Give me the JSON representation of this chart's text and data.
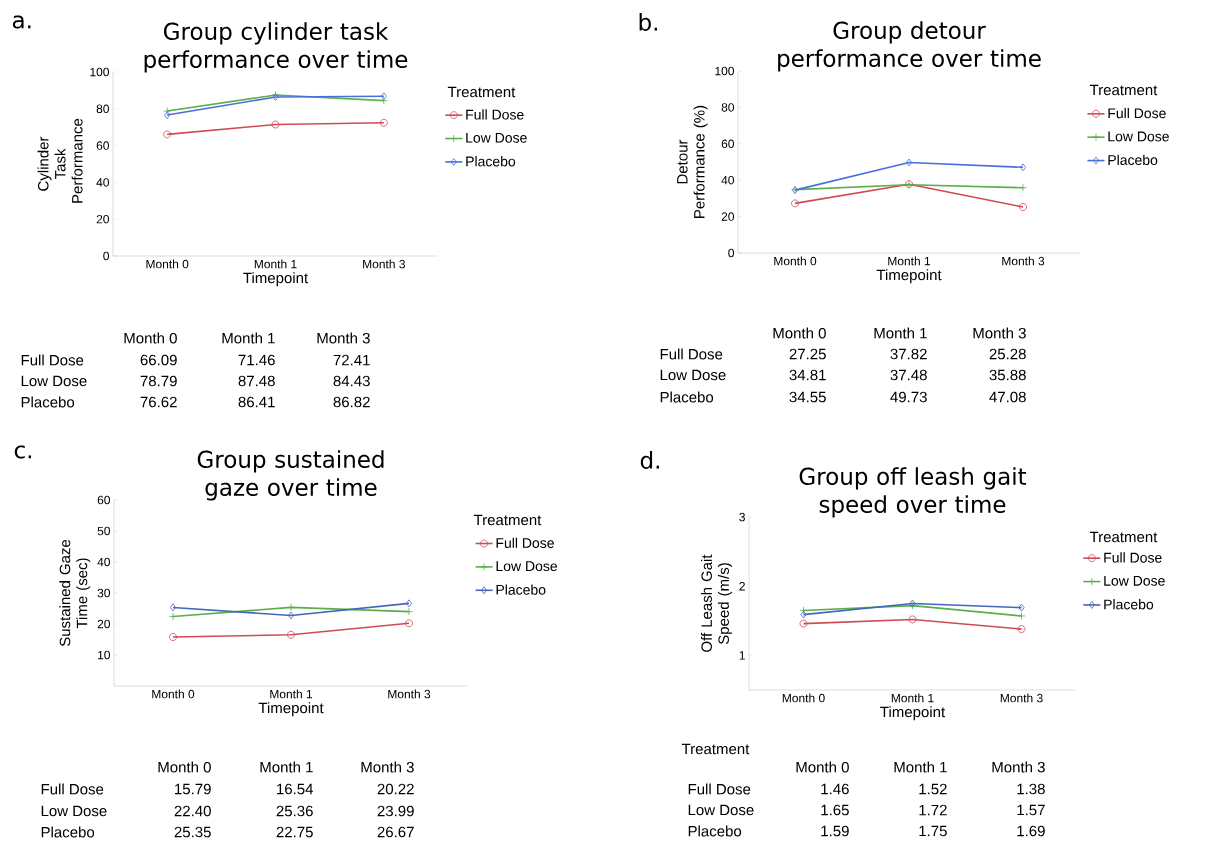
{
  "chart_data": [
    {
      "type": "line",
      "title": "Group cylinder task performance over time",
      "xlabel": "Timepoint",
      "ylabel": "Cylinder Task Performance",
      "legend_title": "Treatment",
      "legend": "right",
      "annotations": [
        "a."
      ],
      "categories": [
        "Month 0",
        "Month 1",
        "Month 3"
      ],
      "ylim": [
        0,
        100
      ],
      "yticks": [
        0,
        20,
        40,
        60,
        80,
        100
      ],
      "series": [
        {
          "name": "Full Dose",
          "color": "#cf4a55",
          "marker": "circle",
          "values": [
            66.09,
            71.46,
            72.41
          ],
          "value_labels": [
            "66.09",
            "71.46",
            "72.41"
          ]
        },
        {
          "name": "Low Dose",
          "color": "#5aaf4a",
          "marker": "cross",
          "values": [
            78.79,
            87.48,
            84.43
          ],
          "value_labels": [
            "78.79",
            "87.48",
            "84.43"
          ]
        },
        {
          "name": "Placebo",
          "color": "#4a6fd9",
          "marker": "diamond",
          "values": [
            76.62,
            86.41,
            86.82
          ],
          "value_labels": [
            "76.62",
            "86.41",
            "86.82"
          ]
        }
      ]
    },
    {
      "type": "line",
      "title": "Group detour performance over time",
      "xlabel": "Timepoint",
      "ylabel": "Detour Performance (%)",
      "legend_title": "Treatment",
      "legend": "right",
      "annotations": [
        "b."
      ],
      "categories": [
        "Month 0",
        "Month 1",
        "Month 3"
      ],
      "ylim": [
        0,
        100
      ],
      "yticks": [
        0,
        20,
        40,
        60,
        80,
        100
      ],
      "series": [
        {
          "name": "Full Dose",
          "color": "#cf4a55",
          "marker": "circle",
          "values": [
            27.25,
            37.82,
            25.28
          ],
          "value_labels": [
            "27.25",
            "37.82",
            "25.28"
          ]
        },
        {
          "name": "Low Dose",
          "color": "#5aaf4a",
          "marker": "cross",
          "values": [
            34.81,
            37.48,
            35.88
          ],
          "value_labels": [
            "34.81",
            "37.48",
            "35.88"
          ]
        },
        {
          "name": "Placebo",
          "color": "#4a6fd9",
          "marker": "diamond",
          "values": [
            34.55,
            49.73,
            47.08
          ],
          "value_labels": [
            "34.55",
            "49.73",
            "47.08"
          ]
        }
      ]
    },
    {
      "type": "line",
      "title": "Group sustained gaze over time",
      "xlabel": "Timepoint",
      "ylabel": "Sustained Gaze Time (sec)",
      "legend_title": "Treatment",
      "legend": "right",
      "annotations": [
        "c."
      ],
      "categories": [
        "Month 0",
        "Month 1",
        "Month 3"
      ],
      "ylim": [
        0,
        60
      ],
      "yticks": [
        10,
        20,
        30,
        40,
        50,
        60
      ],
      "series": [
        {
          "name": "Full Dose",
          "color": "#cf4a55",
          "marker": "circle",
          "values": [
            15.79,
            16.54,
            20.22
          ],
          "value_labels": [
            "15.79",
            "16.54",
            "20.22"
          ]
        },
        {
          "name": "Low Dose",
          "color": "#5aaf4a",
          "marker": "cross",
          "values": [
            22.4,
            25.36,
            23.99
          ],
          "value_labels": [
            "22.40",
            "25.36",
            "23.99"
          ]
        },
        {
          "name": "Placebo",
          "color": "#4466bb",
          "marker": "diamond",
          "values": [
            25.35,
            22.75,
            26.67
          ],
          "value_labels": [
            "25.35",
            "22.75",
            "26.67"
          ]
        }
      ]
    },
    {
      "type": "line",
      "title": "Group off leash gait speed over time",
      "xlabel": "Timepoint",
      "ylabel": "Off Leash Gait Speed (m/s)",
      "legend_title": "Treatment",
      "legend": "right",
      "annotations": [
        "d.",
        "Treatment"
      ],
      "categories": [
        "Month 0",
        "Month 1",
        "Month 3"
      ],
      "ylim": [
        0.5,
        3
      ],
      "yticks": [
        1,
        2,
        3
      ],
      "series": [
        {
          "name": "Full Dose",
          "color": "#cf4a55",
          "marker": "circle",
          "values": [
            1.46,
            1.52,
            1.38
          ],
          "value_labels": [
            "1.46",
            "1.52",
            "1.38"
          ]
        },
        {
          "name": "Low Dose",
          "color": "#5aaf4a",
          "marker": "cross",
          "values": [
            1.65,
            1.72,
            1.57
          ],
          "value_labels": [
            "1.65",
            "1.72",
            "1.57"
          ]
        },
        {
          "name": "Placebo",
          "color": "#4466bb",
          "marker": "diamond",
          "values": [
            1.59,
            1.75,
            1.69
          ],
          "value_labels": [
            "1.59",
            "1.75",
            "1.69"
          ]
        }
      ]
    }
  ]
}
